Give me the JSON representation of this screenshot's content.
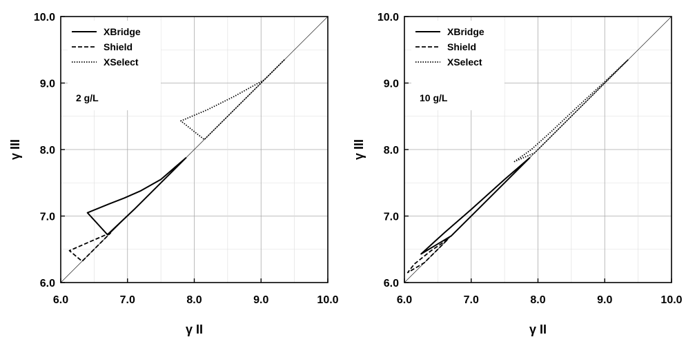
{
  "chart_data": [
    {
      "type": "line",
      "annotation": "2 g/L",
      "xlabel": "γ II",
      "ylabel": "γ III",
      "xlim": [
        6.0,
        10.0
      ],
      "ylim": [
        6.0,
        10.0
      ],
      "xticks": [
        "6.0",
        "7.0",
        "8.0",
        "9.0",
        "10.0"
      ],
      "yticks": [
        "6.0",
        "7.0",
        "8.0",
        "9.0",
        "10.0"
      ],
      "grid": true,
      "legend_position": "top-left",
      "reference_line": "y = x",
      "series": [
        {
          "name": "XBridge",
          "style": "solid",
          "x": [
            7.88,
            7.5,
            7.2,
            6.95,
            6.72,
            6.4,
            6.7,
            7.1,
            7.5,
            7.88
          ],
          "y": [
            7.88,
            7.55,
            7.38,
            7.27,
            7.18,
            7.05,
            6.72,
            7.1,
            7.5,
            7.88
          ]
        },
        {
          "name": "Shield",
          "style": "dashed",
          "x": [
            6.75,
            6.45,
            6.13,
            6.32,
            6.55,
            6.75
          ],
          "y": [
            6.75,
            6.62,
            6.48,
            6.32,
            6.55,
            6.75
          ]
        },
        {
          "name": "XSelect",
          "style": "dotted",
          "x": [
            9.35,
            9.05,
            8.6,
            8.2,
            7.8,
            8.15,
            8.6,
            9.05,
            9.35
          ],
          "y": [
            9.35,
            9.05,
            8.8,
            8.6,
            8.43,
            8.15,
            8.6,
            9.05,
            9.35
          ]
        }
      ]
    },
    {
      "type": "line",
      "annotation": "10 g/L",
      "xlabel": "γ II",
      "ylabel": "γ III",
      "xlim": [
        6.0,
        10.0
      ],
      "ylim": [
        6.0,
        10.0
      ],
      "xticks": [
        "6.0",
        "7.0",
        "8.0",
        "9.0",
        "10.0"
      ],
      "yticks": [
        "6.0",
        "7.0",
        "8.0",
        "9.0",
        "10.0"
      ],
      "grid": true,
      "legend_position": "top-left",
      "reference_line": "y = x",
      "series": [
        {
          "name": "XBridge",
          "style": "solid",
          "x": [
            7.88,
            7.5,
            7.0,
            6.6,
            6.25,
            6.7,
            7.1,
            7.5,
            7.88
          ],
          "y": [
            7.88,
            7.55,
            7.1,
            6.75,
            6.43,
            6.7,
            7.1,
            7.5,
            7.88
          ],
          "note": ""
        },
        {
          "name": "Shield",
          "style": "dashed",
          "x": [
            6.65,
            6.4,
            6.15,
            6.05,
            6.3,
            6.65
          ],
          "y": [
            6.65,
            6.48,
            6.28,
            6.15,
            6.3,
            6.65
          ]
        },
        {
          "name": "XSelect",
          "style": "dotted",
          "x": [
            9.35,
            9.0,
            8.6,
            8.2,
            7.9,
            7.65,
            7.95,
            8.3,
            8.7,
            9.0,
            9.35
          ],
          "y": [
            9.35,
            9.02,
            8.65,
            8.27,
            8.0,
            7.82,
            7.95,
            8.3,
            8.7,
            9.0,
            9.35
          ]
        }
      ]
    }
  ]
}
